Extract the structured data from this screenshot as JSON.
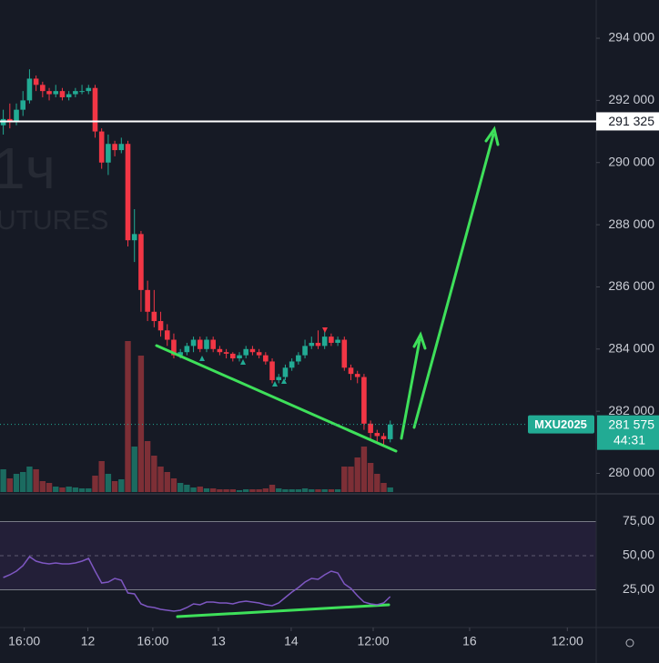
{
  "chart_data": {
    "type": "candlestick",
    "symbol": "MXU2025",
    "countdown": "44:31",
    "watermark": "1ч",
    "watermark_subtitle": "UTURES",
    "colors": {
      "up": "#22ab94",
      "down": "#f23645",
      "volume_up": "#1b6b60",
      "volume_down": "#7d2f36"
    },
    "x": [
      0,
      1,
      2,
      3,
      4,
      5,
      6,
      7,
      8,
      9,
      10,
      11,
      12,
      13,
      14,
      15,
      16,
      17,
      18,
      19,
      20,
      21,
      22,
      23,
      24,
      25,
      26,
      27,
      28,
      29,
      30,
      31,
      32,
      33,
      34,
      35,
      36,
      37,
      38,
      39,
      40,
      41,
      42,
      43,
      44,
      45,
      46,
      47,
      48,
      49,
      50,
      51,
      52,
      53,
      54,
      55,
      56,
      57,
      58,
      59
    ],
    "open": [
      291200,
      291400,
      291300,
      291700,
      292000,
      292700,
      292500,
      292300,
      292200,
      292300,
      292100,
      292200,
      292300,
      292300,
      292400,
      291000,
      290000,
      290600,
      290400,
      290600,
      287500,
      287700,
      285900,
      285200,
      284900,
      284600,
      284300,
      283800,
      283900,
      284100,
      284300,
      284000,
      284300,
      284000,
      283900,
      283850,
      283700,
      283800,
      284000,
      283900,
      283800,
      283600,
      283000,
      283100,
      283400,
      283600,
      283800,
      284100,
      284200,
      284100,
      284400,
      284200,
      284300,
      283400,
      283200,
      283100,
      281600,
      281300,
      281200,
      281100
    ],
    "high": [
      291700,
      291900,
      291900,
      292300,
      293000,
      292800,
      292600,
      292400,
      292500,
      292400,
      292300,
      292400,
      292500,
      292500,
      292500,
      291100,
      290900,
      290700,
      290800,
      290700,
      288500,
      287800,
      286200,
      285900,
      285200,
      284800,
      284500,
      284000,
      284200,
      284400,
      284400,
      284400,
      284400,
      284100,
      284000,
      283900,
      283900,
      284100,
      284100,
      284000,
      283900,
      283700,
      283200,
      283500,
      283700,
      283900,
      284300,
      284400,
      284600,
      284600,
      284500,
      284400,
      284400,
      283500,
      283300,
      283200,
      281700,
      281400,
      281300,
      281700
    ],
    "low": [
      290900,
      291100,
      291200,
      291500,
      291900,
      292300,
      292100,
      292000,
      292100,
      292000,
      292000,
      292100,
      292200,
      292200,
      290800,
      289800,
      289600,
      290200,
      290300,
      287300,
      286800,
      285200,
      284900,
      284700,
      284400,
      284100,
      283700,
      283700,
      283800,
      283900,
      283900,
      283900,
      283900,
      283800,
      283700,
      283600,
      283600,
      283700,
      283800,
      283700,
      283500,
      282900,
      282900,
      283000,
      283300,
      283500,
      283700,
      284000,
      284000,
      284000,
      284100,
      284100,
      283300,
      283000,
      282900,
      281400,
      281100,
      281000,
      280900,
      281000
    ],
    "close": [
      291400,
      291300,
      291700,
      292000,
      292700,
      292500,
      292300,
      292200,
      292300,
      292100,
      292200,
      292300,
      292300,
      292400,
      291000,
      290000,
      290600,
      290400,
      290600,
      287500,
      287700,
      285900,
      285200,
      284900,
      284600,
      284300,
      283800,
      283900,
      284100,
      284300,
      284000,
      284300,
      284000,
      283900,
      283850,
      283700,
      283800,
      284000,
      283900,
      283800,
      283600,
      283000,
      283100,
      283400,
      283600,
      283800,
      284100,
      284200,
      284100,
      284400,
      284200,
      284300,
      283400,
      283200,
      283100,
      281600,
      281300,
      281200,
      281100,
      281575
    ],
    "volume": [
      25,
      15,
      20,
      22,
      28,
      25,
      12,
      10,
      6,
      5,
      6,
      5,
      4,
      4,
      18,
      34,
      20,
      12,
      14,
      166,
      50,
      150,
      56,
      40,
      28,
      22,
      15,
      10,
      8,
      5,
      6,
      4,
      4,
      3,
      3,
      3,
      2,
      3,
      3,
      3,
      4,
      8,
      4,
      3,
      3,
      3,
      4,
      3,
      3,
      3,
      3,
      3,
      28,
      28,
      38,
      50,
      32,
      20,
      10,
      5
    ],
    "volume_lim": [
      0,
      170
    ],
    "xlim": [
      -0.5,
      90.4
    ],
    "xticks": [
      {
        "value": 3.2,
        "label": "16:00"
      },
      {
        "value": 12.9,
        "label": "12"
      },
      {
        "value": 22.8,
        "label": "16:00"
      },
      {
        "value": 32.8,
        "label": "13"
      },
      {
        "value": 43.9,
        "label": "14"
      },
      {
        "value": 56.4,
        "label": "12:00"
      },
      {
        "value": 71.1,
        "label": "16"
      },
      {
        "value": 86,
        "label": "12:00"
      }
    ],
    "ylim": [
      279400,
      295230
    ],
    "yticks": [
      {
        "value": 294000,
        "label": "294 000"
      },
      {
        "value": 292000,
        "label": "292 000"
      },
      {
        "value": 290000,
        "label": "290 000"
      },
      {
        "value": 288000,
        "label": "288 000"
      },
      {
        "value": 286000,
        "label": "286 000"
      },
      {
        "value": 284000,
        "label": "284 000"
      },
      {
        "value": 282000,
        "label": "282 000"
      },
      {
        "value": 280000,
        "label": "280 000"
      }
    ],
    "hline": {
      "value": 291325,
      "label": "291 325",
      "color": "#ffffff"
    },
    "last_price": {
      "value": 281575,
      "label": "281 575"
    },
    "rsi": {
      "color": "#7e57c2",
      "band_color": "#231f38",
      "ylim": [
        4,
        94
      ],
      "yticks": [
        {
          "value": 75,
          "label": "75,00"
        },
        {
          "value": 50,
          "label": "50,00"
        },
        {
          "value": 25,
          "label": "25,00"
        }
      ],
      "values": [
        34,
        36,
        38.7,
        42.7,
        49.3,
        46,
        44.7,
        44,
        44.7,
        44,
        44,
        44.7,
        46,
        48,
        38.7,
        30,
        30.7,
        33.3,
        32,
        22.7,
        22,
        14.7,
        12.7,
        12,
        10.7,
        10,
        9.3,
        10,
        12,
        14.7,
        14,
        16,
        16,
        15.3,
        15.3,
        14.7,
        16,
        16.7,
        16,
        15.3,
        14,
        13.3,
        15.3,
        19.3,
        23.3,
        26.7,
        30.7,
        33.3,
        32.7,
        36,
        38.7,
        37.3,
        29.3,
        26,
        20.7,
        16,
        14.7,
        14,
        15.3,
        20
      ]
    }
  }
}
